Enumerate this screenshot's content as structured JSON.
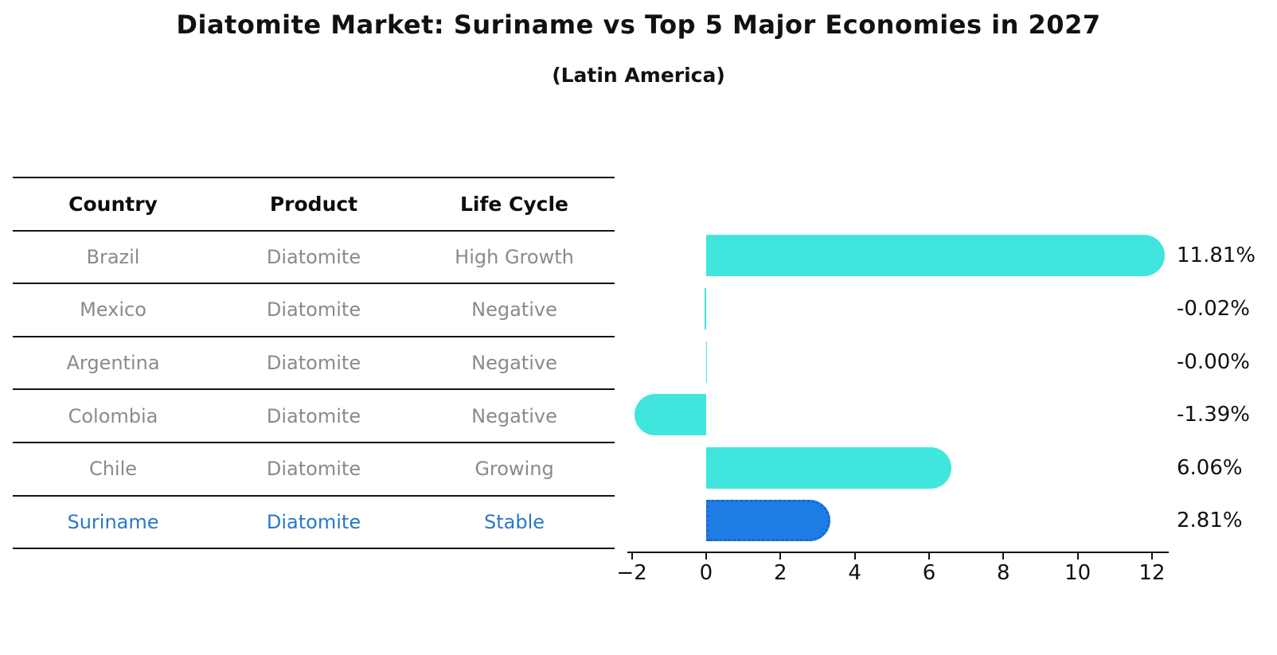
{
  "title": "Diatomite Market: Suriname vs Top 5 Major Economies in 2027",
  "subtitle": "(Latin America)",
  "table": {
    "headers": [
      "Country",
      "Product",
      "Life Cycle"
    ],
    "rows": [
      {
        "country": "Brazil",
        "product": "Diatomite",
        "life_cycle": "High Growth",
        "highlight": false
      },
      {
        "country": "Mexico",
        "product": "Diatomite",
        "life_cycle": "Negative",
        "highlight": false
      },
      {
        "country": "Argentina",
        "product": "Diatomite",
        "life_cycle": "Negative",
        "highlight": false
      },
      {
        "country": "Colombia",
        "product": "Diatomite",
        "life_cycle": "Negative",
        "highlight": false
      },
      {
        "country": "Chile",
        "product": "Diatomite",
        "life_cycle": "Growing",
        "highlight": false
      },
      {
        "country": "Suriname",
        "product": "Diatomite",
        "life_cycle": "Stable",
        "highlight": true
      }
    ]
  },
  "chart_data": {
    "type": "bar",
    "orientation": "horizontal",
    "title": "Diatomite Market: Suriname vs Top 5 Major Economies in 2027",
    "subtitle": "(Latin America)",
    "categories": [
      "Brazil",
      "Mexico",
      "Argentina",
      "Colombia",
      "Chile",
      "Suriname"
    ],
    "values": [
      11.81,
      -0.02,
      -0.0,
      -1.39,
      6.06,
      2.81
    ],
    "value_labels": [
      "11.81%",
      "-0.02%",
      "-0.00%",
      "-1.39%",
      "6.06%",
      "2.81%"
    ],
    "xticks": [
      -2,
      0,
      2,
      4,
      6,
      8,
      10,
      12
    ],
    "xtick_labels": [
      "−2",
      "0",
      "2",
      "4",
      "6",
      "8",
      "10",
      "12"
    ],
    "xlim": [
      -2.12,
      12.45
    ],
    "grid": false,
    "legend": false,
    "highlight_index": 5,
    "bar_color": "#40E5DD",
    "highlight_bar_color": "#1E7DE5",
    "highlight_border_color": "#1668C8",
    "highlight_text_color": "#2878CC",
    "axis_color": "#111111"
  }
}
